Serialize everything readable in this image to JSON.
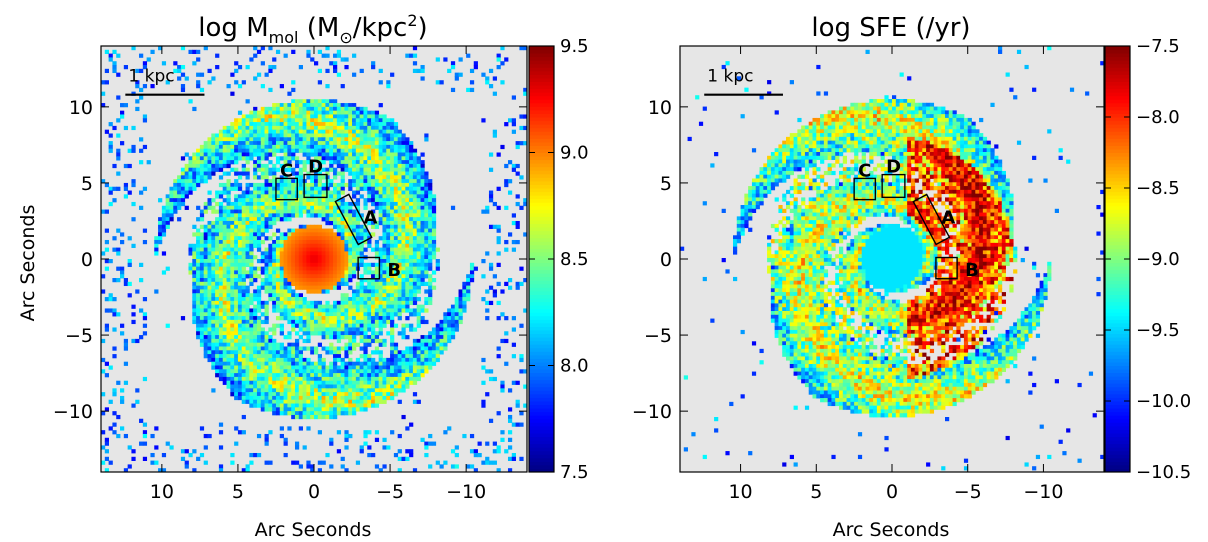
{
  "chart_data": [
    {
      "type": "heatmap",
      "title": "log M",
      "title_sub": "mol",
      "title_rest": " (M",
      "title_sun": "⊙",
      "title_unit": "/kpc",
      "title_sup": "2",
      "title_close": ")",
      "xlabel": "Arc Seconds",
      "ylabel": "Arc Seconds",
      "xlim": [
        14,
        -14
      ],
      "ylim": [
        -14,
        14
      ],
      "x_ticks": [
        10,
        5,
        0,
        -5,
        -10
      ],
      "x_tick_labels": [
        "10",
        "5",
        "0",
        "−5",
        "−10"
      ],
      "y_ticks": [
        10,
        5,
        0,
        -5,
        -10
      ],
      "y_tick_labels": [
        "10",
        "5",
        "0",
        "−5",
        "−10"
      ],
      "colorbar": {
        "min": 7.5,
        "max": 9.5,
        "ticks": [
          9.5,
          9.0,
          8.5,
          8.0,
          7.5
        ],
        "tick_labels": [
          "9.5",
          "9.0",
          "8.5",
          "8.0",
          "7.5"
        ]
      },
      "scalebar_label": "1 kpc",
      "regions": [
        {
          "label": "A",
          "shape": "tilted-box",
          "center": [
            -2.6,
            2.6
          ],
          "width": 1.0,
          "length": 3.2,
          "angle": 28
        },
        {
          "label": "B",
          "shape": "box",
          "center": [
            -3.6,
            -0.6
          ],
          "size": 1.4
        },
        {
          "label": "C",
          "shape": "box",
          "center": [
            1.8,
            4.6
          ],
          "size": 1.4
        },
        {
          "label": "D",
          "shape": "box",
          "center": [
            -0.1,
            4.8
          ],
          "size": 1.5
        }
      ],
      "background_color": "#e6e6e6"
    },
    {
      "type": "heatmap",
      "title": "log SFE (/yr)",
      "xlabel": "Arc Seconds",
      "ylabel": "",
      "xlim": [
        14,
        -14
      ],
      "ylim": [
        -14,
        14
      ],
      "x_ticks": [
        10,
        5,
        0,
        -5,
        -10
      ],
      "x_tick_labels": [
        "10",
        "5",
        "0",
        "−5",
        "−10"
      ],
      "y_ticks": [
        10,
        5,
        0,
        -5,
        -10
      ],
      "y_tick_labels": [
        "10",
        "5",
        "0",
        "−5",
        "−10"
      ],
      "colorbar": {
        "min": -10.5,
        "max": -7.5,
        "ticks": [
          -7.5,
          -8.0,
          -8.5,
          -9.0,
          -9.5,
          -10.0,
          -10.5
        ],
        "tick_labels": [
          "−7.5",
          "−8.0",
          "−8.5",
          "−9.0",
          "−9.5",
          "−10.0",
          "−10.5"
        ]
      },
      "scalebar_label": "1 kpc",
      "regions": [
        {
          "label": "A",
          "shape": "tilted-box",
          "center": [
            -2.6,
            2.6
          ],
          "width": 1.0,
          "length": 3.2,
          "angle": 28
        },
        {
          "label": "B",
          "shape": "box",
          "center": [
            -3.6,
            -0.6
          ],
          "size": 1.4
        },
        {
          "label": "C",
          "shape": "box",
          "center": [
            1.8,
            4.6
          ],
          "size": 1.4
        },
        {
          "label": "D",
          "shape": "box",
          "center": [
            -0.1,
            4.8
          ],
          "size": 1.5
        }
      ],
      "background_color": "#e6e6e6"
    }
  ]
}
